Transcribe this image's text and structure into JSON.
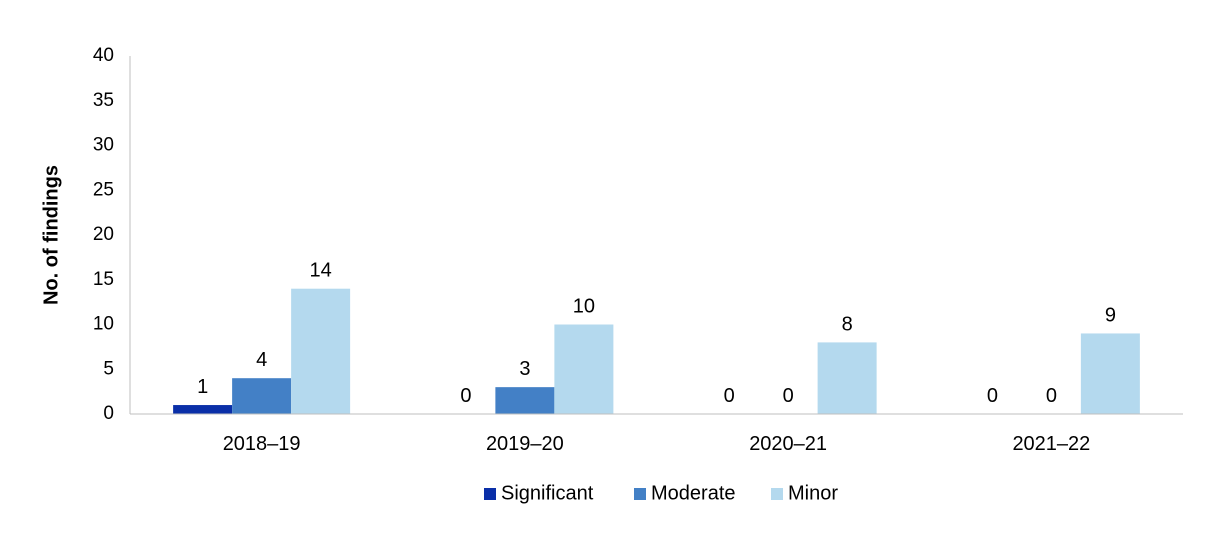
{
  "chart_data": {
    "type": "bar",
    "categories": [
      "2018–19",
      "2019–20",
      "2020–21",
      "2021–22"
    ],
    "series": [
      {
        "name": "Significant",
        "values": [
          1,
          0,
          0,
          0
        ],
        "color": "#0A2FA8"
      },
      {
        "name": "Moderate",
        "values": [
          4,
          3,
          0,
          0
        ],
        "color": "#4380C6"
      },
      {
        "name": "Minor",
        "values": [
          14,
          10,
          8,
          9
        ],
        "color": "#B4D9EE"
      }
    ],
    "ylabel": "No. of findings",
    "xlabel": "",
    "ylim": [
      0,
      40
    ],
    "yticks": [
      "0",
      "5",
      "10",
      "15",
      "20",
      "25",
      "30",
      "35",
      "40"
    ],
    "data_labels": [
      [
        "1",
        "0",
        "0",
        "0"
      ],
      [
        "4",
        "3",
        "0",
        "0"
      ],
      [
        "14",
        "10",
        "8",
        "9"
      ]
    ],
    "grid": false,
    "legend_position": "bottom",
    "colors": {
      "axis": "#BFBFBF",
      "text": "#000000"
    }
  }
}
